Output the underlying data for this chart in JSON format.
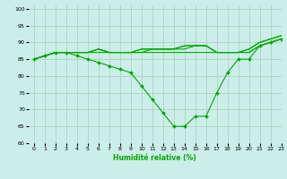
{
  "title": "",
  "xlabel": "Humidité relative (%)",
  "ylabel": "",
  "background_color": "#cceee8",
  "grid_color": "#aaccbb",
  "line_color": "#00aa00",
  "xlim": [
    -0.5,
    23
  ],
  "ylim": [
    60,
    101
  ],
  "yticks": [
    60,
    65,
    70,
    75,
    80,
    85,
    90,
    95,
    100
  ],
  "xticks": [
    0,
    1,
    2,
    3,
    4,
    5,
    6,
    7,
    8,
    9,
    10,
    11,
    12,
    13,
    14,
    15,
    16,
    17,
    18,
    19,
    20,
    21,
    22,
    23
  ],
  "tick_labelsize": 4.5,
  "xlabel_fontsize": 5.5,
  "series": [
    {
      "x": [
        0,
        1,
        2,
        3,
        4,
        5,
        6,
        7,
        8,
        9,
        10,
        11,
        12,
        13,
        14,
        15,
        16,
        17,
        18,
        19,
        20,
        21,
        22,
        23
      ],
      "y": [
        85,
        86,
        87,
        87,
        87,
        87,
        88,
        87,
        87,
        87,
        88,
        88,
        88,
        88,
        89,
        89,
        89,
        87,
        87,
        87,
        88,
        90,
        91,
        92
      ],
      "marker": false,
      "lw": 0.8
    },
    {
      "x": [
        0,
        1,
        2,
        3,
        4,
        5,
        6,
        7,
        8,
        9,
        10,
        11,
        12,
        13,
        14,
        15,
        16,
        17,
        18,
        19,
        20,
        21,
        22,
        23
      ],
      "y": [
        85,
        86,
        87,
        87,
        87,
        87,
        88,
        87,
        87,
        87,
        88,
        88,
        88,
        88,
        89,
        89,
        89,
        87,
        87,
        87,
        88,
        90,
        91,
        92
      ],
      "marker": false,
      "lw": 0.8
    },
    {
      "x": [
        0,
        1,
        2,
        3,
        4,
        5,
        6,
        7,
        8,
        9,
        10,
        11,
        12,
        13,
        14,
        15,
        16,
        17,
        18,
        19,
        20,
        21,
        22,
        23
      ],
      "y": [
        85,
        86,
        87,
        87,
        87,
        87,
        88,
        87,
        87,
        87,
        87,
        88,
        88,
        88,
        88,
        89,
        89,
        87,
        87,
        87,
        87,
        89,
        90,
        91
      ],
      "marker": false,
      "lw": 0.8
    },
    {
      "x": [
        0,
        1,
        2,
        3,
        4,
        5,
        6,
        7,
        8,
        9,
        10,
        11,
        12,
        13,
        14,
        15,
        16,
        17,
        18,
        19,
        20,
        21,
        22,
        23
      ],
      "y": [
        85,
        86,
        87,
        87,
        87,
        87,
        87,
        87,
        87,
        87,
        87,
        87,
        87,
        87,
        87,
        87,
        87,
        87,
        87,
        87,
        87,
        89,
        90,
        91
      ],
      "marker": false,
      "lw": 0.8
    },
    {
      "x": [
        0,
        1,
        2,
        3,
        4,
        5,
        6,
        7,
        8,
        9,
        10,
        11,
        12,
        13,
        14,
        15,
        16,
        17,
        18,
        19,
        20,
        21,
        22,
        23
      ],
      "y": [
        85,
        86,
        87,
        87,
        86,
        85,
        84,
        83,
        82,
        81,
        77,
        73,
        69,
        65,
        65,
        68,
        68,
        75,
        81,
        85,
        85,
        89,
        90,
        91
      ],
      "marker": true,
      "lw": 0.8
    }
  ]
}
